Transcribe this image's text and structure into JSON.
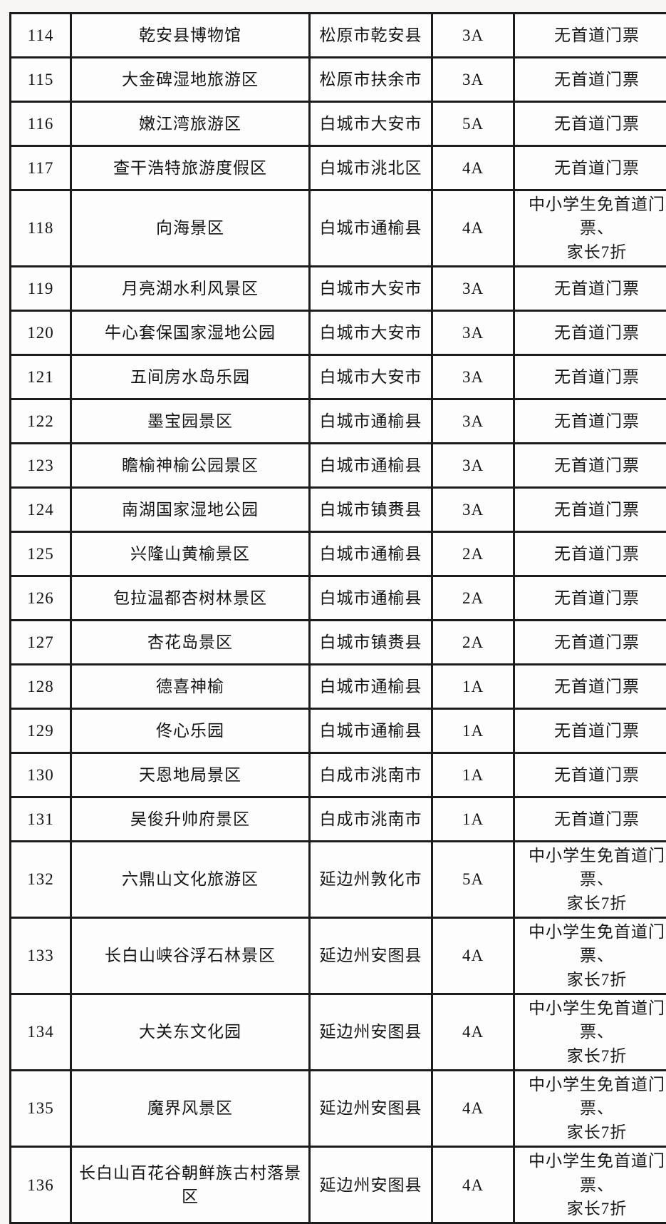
{
  "colors": {
    "page_background": "#f7f6f4",
    "cell_background": "#fdfdfd",
    "border": "#1c1c1c",
    "text": "#151515"
  },
  "table": {
    "columns": [
      {
        "key": "number",
        "name": "index-number"
      },
      {
        "key": "name",
        "name": "attraction-name"
      },
      {
        "key": "location",
        "name": "location"
      },
      {
        "key": "rating",
        "name": "rating-level"
      },
      {
        "key": "policy",
        "name": "ticket-policy"
      }
    ],
    "rows": [
      {
        "number": "114",
        "name": "乾安县博物馆",
        "location": "松原市乾安县",
        "rating": "3A",
        "policy": "无首道门票"
      },
      {
        "number": "115",
        "name": "大金碑湿地旅游区",
        "location": "松原市扶余市",
        "rating": "3A",
        "policy": "无首道门票"
      },
      {
        "number": "116",
        "name": "嫩江湾旅游区",
        "location": "白城市大安市",
        "rating": "5A",
        "policy": "无首道门票"
      },
      {
        "number": "117",
        "name": "查干浩特旅游度假区",
        "location": "白城市洮北区",
        "rating": "4A",
        "policy": "无首道门票"
      },
      {
        "number": "118",
        "name": "向海景区",
        "location": "白城市通榆县",
        "rating": "4A",
        "policy": "中小学生免首道门票、\n家长7折"
      },
      {
        "number": "119",
        "name": "月亮湖水利风景区",
        "location": "白城市大安市",
        "rating": "3A",
        "policy": "无首道门票"
      },
      {
        "number": "120",
        "name": "牛心套保国家湿地公园",
        "location": "白城市大安市",
        "rating": "3A",
        "policy": "无首道门票"
      },
      {
        "number": "121",
        "name": "五间房水岛乐园",
        "location": "白城市大安市",
        "rating": "3A",
        "policy": "无首道门票"
      },
      {
        "number": "122",
        "name": "墨宝园景区",
        "location": "白城市通榆县",
        "rating": "3A",
        "policy": "无首道门票"
      },
      {
        "number": "123",
        "name": "瞻榆神榆公园景区",
        "location": "白城市通榆县",
        "rating": "3A",
        "policy": "无首道门票"
      },
      {
        "number": "124",
        "name": "南湖国家湿地公园",
        "location": "白城市镇赉县",
        "rating": "3A",
        "policy": "无首道门票"
      },
      {
        "number": "125",
        "name": "兴隆山黄榆景区",
        "location": "白城市通榆县",
        "rating": "2A",
        "policy": "无首道门票"
      },
      {
        "number": "126",
        "name": "包拉温都杏树林景区",
        "location": "白城市通榆县",
        "rating": "2A",
        "policy": "无首道门票"
      },
      {
        "number": "127",
        "name": "杏花岛景区",
        "location": "白城市镇赉县",
        "rating": "2A",
        "policy": "无首道门票"
      },
      {
        "number": "128",
        "name": "德喜神榆",
        "location": "白城市通榆县",
        "rating": "1A",
        "policy": "无首道门票"
      },
      {
        "number": "129",
        "name": "佟心乐园",
        "location": "白城市通榆县",
        "rating": "1A",
        "policy": "无首道门票"
      },
      {
        "number": "130",
        "name": "天恩地局景区",
        "location": "白成市洮南市",
        "rating": "1A",
        "policy": "无首道门票"
      },
      {
        "number": "131",
        "name": "吴俊升帅府景区",
        "location": "白成市洮南市",
        "rating": "1A",
        "policy": "无首道门票"
      },
      {
        "number": "132",
        "name": "六鼎山文化旅游区",
        "location": "延边州敦化市",
        "rating": "5A",
        "policy": "中小学生免首道门票、\n家长7折"
      },
      {
        "number": "133",
        "name": "长白山峡谷浮石林景区",
        "location": "延边州安图县",
        "rating": "4A",
        "policy": "中小学生免首道门票、\n家长7折"
      },
      {
        "number": "134",
        "name": "大关东文化园",
        "location": "延边州安图县",
        "rating": "4A",
        "policy": "中小学生免首道门票、\n家长7折"
      },
      {
        "number": "135",
        "name": "魔界风景区",
        "location": "延边州安图县",
        "rating": "4A",
        "policy": "中小学生免首道门票、\n家长7折"
      },
      {
        "number": "136",
        "name": "长白山百花谷朝鲜族古村落景区",
        "location": "延边州安图县",
        "rating": "4A",
        "policy": "中小学生免首道门票、\n家长7折"
      }
    ]
  }
}
